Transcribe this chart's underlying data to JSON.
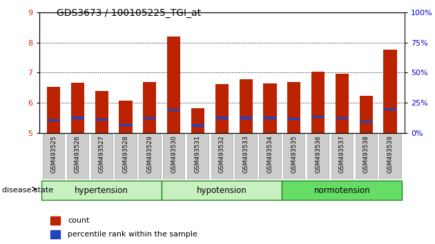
{
  "title": "GDS3673 / 100105225_TGI_at",
  "categories": [
    "GSM493525",
    "GSM493526",
    "GSM493527",
    "GSM493528",
    "GSM493529",
    "GSM493530",
    "GSM493531",
    "GSM493532",
    "GSM493533",
    "GSM493534",
    "GSM493535",
    "GSM493536",
    "GSM493537",
    "GSM493538",
    "GSM493539"
  ],
  "bar_heights": [
    6.52,
    6.67,
    6.38,
    6.07,
    6.68,
    8.2,
    5.82,
    6.63,
    6.78,
    6.65,
    6.68,
    7.02,
    6.97,
    6.22,
    7.77
  ],
  "blue_positions": [
    5.43,
    5.5,
    5.45,
    5.27,
    5.48,
    5.77,
    5.25,
    5.5,
    5.5,
    5.5,
    5.47,
    5.53,
    5.48,
    5.38,
    5.78
  ],
  "bar_color": "#bb2200",
  "blue_color": "#2244bb",
  "ylim_left": [
    5,
    9
  ],
  "ylim_right": [
    0,
    100
  ],
  "yticks_left": [
    5,
    6,
    7,
    8,
    9
  ],
  "yticks_right": [
    0,
    25,
    50,
    75,
    100
  ],
  "ytick_labels_right": [
    "0%",
    "25%",
    "50%",
    "75%",
    "100%"
  ],
  "group_labels": [
    "hypertension",
    "hypotension",
    "normotension"
  ],
  "group_ranges": [
    [
      0,
      4
    ],
    [
      5,
      9
    ],
    [
      10,
      14
    ]
  ],
  "group_colors": [
    "#c8f0c0",
    "#c8f0c0",
    "#66dd66"
  ],
  "group_border_color": "#228822",
  "disease_state_label": "disease state",
  "legend_count_label": "count",
  "legend_pct_label": "percentile rank within the sample",
  "background_color": "#ffffff",
  "bar_width": 0.55,
  "grid_color": "#000000",
  "tick_label_color_left": "#cc2200",
  "tick_label_color_right": "#0000cc",
  "xtick_bg_color": "#cccccc"
}
